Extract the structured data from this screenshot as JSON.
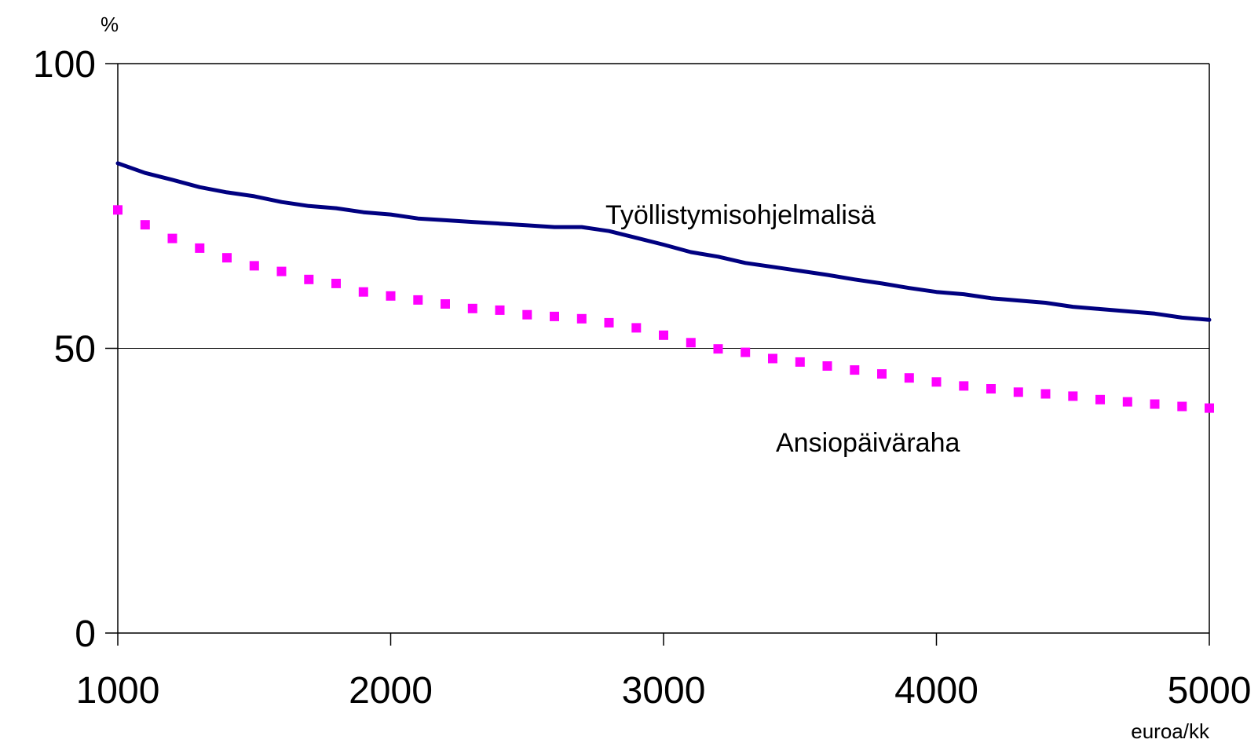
{
  "chart_data": {
    "type": "line",
    "ylabel": "%",
    "xlabel": "euroa/kk",
    "xlim": [
      1000,
      5000
    ],
    "ylim": [
      0,
      100
    ],
    "x_ticks": [
      "1000",
      "2000",
      "3000",
      "4000",
      "5000"
    ],
    "y_ticks": [
      "0",
      "50",
      "100"
    ],
    "gridlines_y": [
      50
    ],
    "x": [
      1000,
      1100,
      1200,
      1300,
      1400,
      1500,
      1600,
      1700,
      1800,
      1900,
      2000,
      2100,
      2200,
      2300,
      2400,
      2500,
      2600,
      2700,
      2800,
      2900,
      3000,
      3100,
      3200,
      3300,
      3400,
      3500,
      3600,
      3700,
      3800,
      3900,
      4000,
      4100,
      4200,
      4300,
      4400,
      4500,
      4600,
      4700,
      4800,
      4900,
      5000
    ],
    "series": [
      {
        "name": "Työllistymisohjelmalisä",
        "color": "#000080",
        "style": "solid",
        "values": [
          82.5,
          80.8,
          79.6,
          78.3,
          77.4,
          76.7,
          75.7,
          75.0,
          74.6,
          73.9,
          73.5,
          72.8,
          72.5,
          72.2,
          71.9,
          71.6,
          71.3,
          71.3,
          70.6,
          69.4,
          68.2,
          66.9,
          66.1,
          65.0,
          64.3,
          63.6,
          62.9,
          62.1,
          61.4,
          60.6,
          59.9,
          59.5,
          58.8,
          58.4,
          58.0,
          57.3,
          56.9,
          56.5,
          56.1,
          55.4,
          55.0
        ]
      },
      {
        "name": "Ansiopäiväraha",
        "color": "#ff00ff",
        "style": "dotted",
        "values": [
          74.3,
          71.7,
          69.3,
          67.6,
          65.9,
          64.5,
          63.5,
          62.1,
          61.4,
          59.9,
          59.2,
          58.5,
          57.8,
          57.0,
          56.7,
          55.9,
          55.6,
          55.2,
          54.5,
          53.6,
          52.3,
          51.0,
          49.9,
          49.3,
          48.2,
          47.6,
          46.9,
          46.2,
          45.5,
          44.8,
          44.1,
          43.4,
          42.9,
          42.3,
          42.0,
          41.6,
          41.0,
          40.6,
          40.2,
          39.8,
          39.5
        ]
      }
    ]
  }
}
